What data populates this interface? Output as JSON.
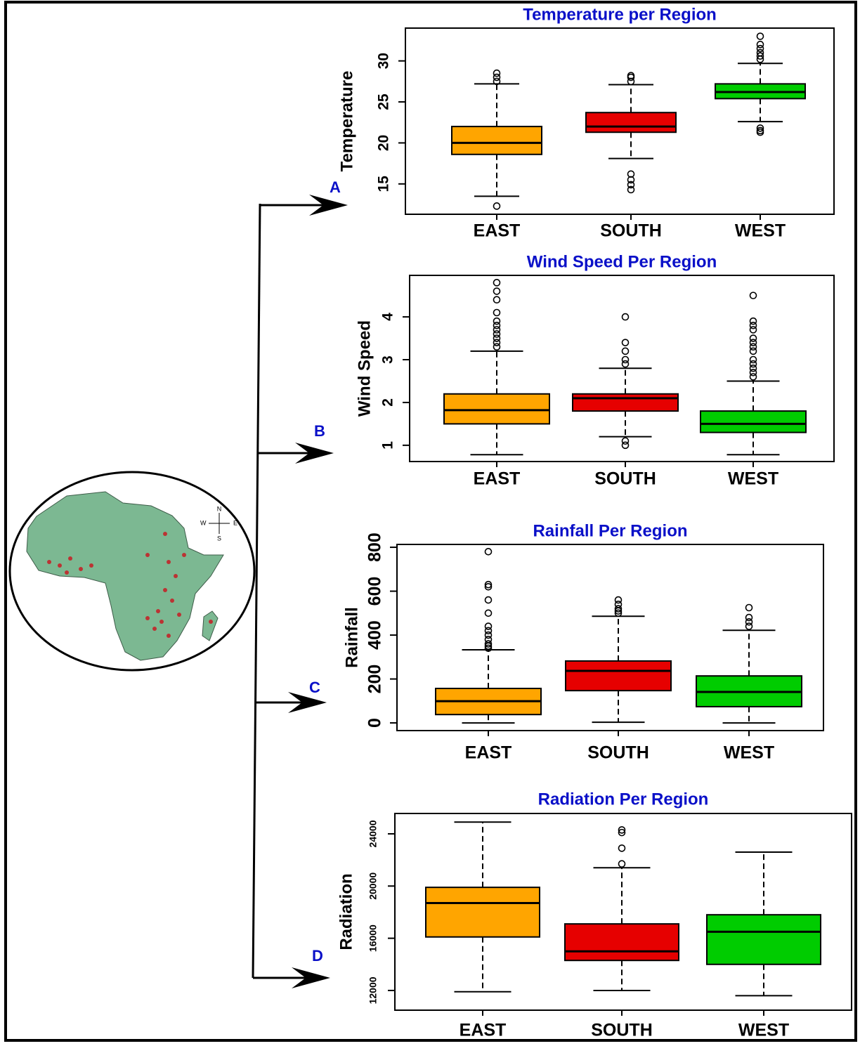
{
  "chart_data": [
    {
      "type": "box",
      "title": "Temperature per Region",
      "ylabel": "Temperature",
      "annotation": "A",
      "categories": [
        "EAST",
        "SOUTH",
        "WEST"
      ],
      "colors": [
        "#FFA500",
        "#E60000",
        "#00CC00"
      ],
      "ylim": [
        11.3,
        34
      ],
      "yticks": [
        15,
        20,
        25,
        30
      ],
      "boxes": [
        {
          "low": 13.5,
          "q1": 18.6,
          "median": 20,
          "q3": 22,
          "high": 27.2,
          "outliers": [
            12.3,
            27.5,
            28,
            28.5
          ]
        },
        {
          "low": 18.1,
          "q1": 21.3,
          "median": 22,
          "q3": 23.7,
          "high": 27.1,
          "outliers": [
            14.3,
            14.9,
            15.5,
            16.2,
            27.5,
            28,
            28.2
          ]
        },
        {
          "low": 22.6,
          "q1": 25.4,
          "median": 26.2,
          "q3": 27.2,
          "high": 29.7,
          "outliers": [
            21.3,
            21.5,
            21.8,
            30.2,
            30.6,
            31,
            31.5,
            32,
            33
          ]
        }
      ]
    },
    {
      "type": "box",
      "title": "Wind Speed Per Region",
      "ylabel": "Wind Speed",
      "annotation": "B",
      "categories": [
        "EAST",
        "SOUTH",
        "WEST"
      ],
      "colors": [
        "#FFA500",
        "#E60000",
        "#00CC00"
      ],
      "ylim": [
        0.62,
        4.97
      ],
      "yticks": [
        1,
        2,
        3,
        4
      ],
      "boxes": [
        {
          "low": 0.78,
          "q1": 1.5,
          "median": 1.82,
          "q3": 2.2,
          "high": 3.2,
          "outliers": [
            3.3,
            3.4,
            3.5,
            3.6,
            3.7,
            3.8,
            3.9,
            4.1,
            4.4,
            4.6,
            4.8
          ]
        },
        {
          "low": 1.2,
          "q1": 1.8,
          "median": 2.1,
          "q3": 2.2,
          "high": 2.8,
          "outliers": [
            1,
            1.1,
            2.9,
            3,
            3.2,
            3.4,
            4
          ]
        },
        {
          "low": 0.78,
          "q1": 1.3,
          "median": 1.5,
          "q3": 1.8,
          "high": 2.5,
          "outliers": [
            2.6,
            2.7,
            2.8,
            2.9,
            3,
            3.2,
            3.3,
            3.4,
            3.5,
            3.7,
            3.8,
            3.9,
            4.5
          ]
        }
      ]
    },
    {
      "type": "box",
      "title": "Rainfall Per Region",
      "ylabel": "Rainfall",
      "annotation": "C",
      "categories": [
        "EAST",
        "SOUTH",
        "WEST"
      ],
      "colors": [
        "#FFA500",
        "#E60000",
        "#00CC00"
      ],
      "ylim": [
        -35,
        813
      ],
      "yticks": [
        0,
        200,
        400,
        600,
        800
      ],
      "boxes": [
        {
          "low": 0,
          "q1": 38,
          "median": 99,
          "q3": 157,
          "high": 333,
          "outliers": [
            340,
            350,
            360,
            380,
            400,
            420,
            440,
            500,
            560,
            620,
            630,
            780
          ]
        },
        {
          "low": 3,
          "q1": 147,
          "median": 237,
          "q3": 282,
          "high": 486,
          "outliers": [
            500,
            510,
            520,
            540,
            560
          ]
        },
        {
          "low": 0,
          "q1": 74,
          "median": 141,
          "q3": 214,
          "high": 422,
          "outliers": [
            440,
            460,
            480,
            525
          ]
        }
      ]
    },
    {
      "type": "box",
      "title": "Radiation Per Region",
      "ylabel": "Radiation",
      "annotation": "D",
      "categories": [
        "EAST",
        "SOUTH",
        "WEST"
      ],
      "colors": [
        "#FFA500",
        "#E60000",
        "#00CC00"
      ],
      "ylim": [
        10490,
        25560
      ],
      "yticks": [
        12000,
        16000,
        20000,
        24000
      ],
      "boxes": [
        {
          "low": 11900,
          "q1": 16100,
          "median": 18700,
          "q3": 19900,
          "high": 24900,
          "outliers": []
        },
        {
          "low": 12000,
          "q1": 14300,
          "median": 15000,
          "q3": 17100,
          "high": 21400,
          "outliers": [
            21700,
            22900,
            24100,
            24300
          ]
        },
        {
          "low": 11600,
          "q1": 14000,
          "median": 16500,
          "q3": 17800,
          "high": 22600,
          "outliers": []
        }
      ]
    }
  ],
  "map": {
    "compass": {
      "n": "N",
      "e": "E",
      "s": "S",
      "w": "W"
    }
  }
}
